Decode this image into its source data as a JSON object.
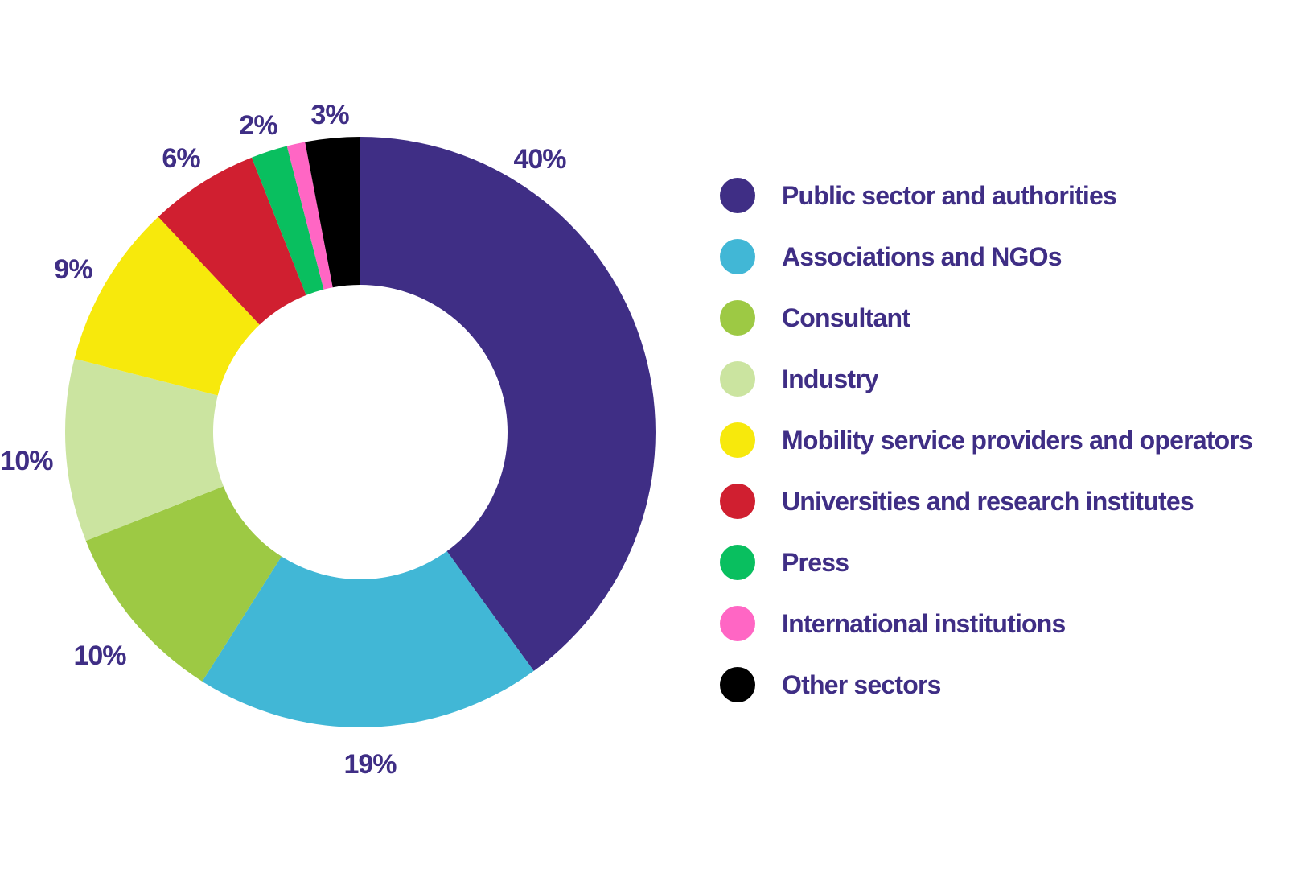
{
  "chart_data": {
    "type": "pie",
    "title": "",
    "donut": true,
    "legend_position": "right",
    "series": [
      {
        "category": "Public sector and authorities",
        "value": 40,
        "label": "40%",
        "color": "#3f2e85"
      },
      {
        "category": "Associations and NGOs",
        "value": 19,
        "label": "19%",
        "color": "#41b7d6"
      },
      {
        "category": "Consultant",
        "value": 10,
        "label": "10%",
        "color": "#9dc944"
      },
      {
        "category": "Industry",
        "value": 10,
        "label": "10%",
        "color": "#cbe4a0"
      },
      {
        "category": "Mobility service providers and operators",
        "value": 9,
        "label": "9%",
        "color": "#f7e90c"
      },
      {
        "category": "Universities and research institutes",
        "value": 6,
        "label": "6%",
        "color": "#d01f30"
      },
      {
        "category": "Press",
        "value": 2,
        "label": "2%",
        "color": "#09bf5f"
      },
      {
        "category": "International institutions",
        "value": 1,
        "label": "",
        "color": "#ff66c4"
      },
      {
        "category": "Other sectors",
        "value": 3,
        "label": "3%",
        "color": "#000000"
      }
    ]
  }
}
